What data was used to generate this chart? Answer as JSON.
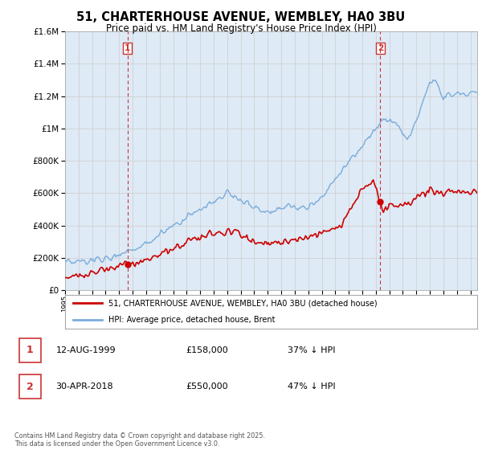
{
  "title": "51, CHARTERHOUSE AVENUE, WEMBLEY, HA0 3BU",
  "subtitle": "Price paid vs. HM Land Registry's House Price Index (HPI)",
  "legend_line1": "51, CHARTERHOUSE AVENUE, WEMBLEY, HA0 3BU (detached house)",
  "legend_line2": "HPI: Average price, detached house, Brent",
  "marker1_label": "1",
  "marker1_date": "12-AUG-1999",
  "marker1_price": "£158,000",
  "marker1_hpi": "37% ↓ HPI",
  "marker2_label": "2",
  "marker2_date": "30-APR-2018",
  "marker2_price": "£550,000",
  "marker2_hpi": "47% ↓ HPI",
  "copyright": "Contains HM Land Registry data © Crown copyright and database right 2025.\nThis data is licensed under the Open Government Licence v3.0.",
  "line_color_red": "#cc0000",
  "line_color_blue": "#7aacdc",
  "marker_color_red": "#cc0000",
  "vline_color": "#cc3333",
  "grid_color": "#cccccc",
  "plot_bg_color": "#deeaf5",
  "background_color": "#ffffff",
  "ylim": [
    0,
    1600000
  ],
  "xlim_start": 1995.0,
  "xlim_end": 2025.5,
  "marker1_x": 1999.615,
  "marker2_x": 2018.33,
  "marker1_y": 158000,
  "marker2_y": 550000
}
